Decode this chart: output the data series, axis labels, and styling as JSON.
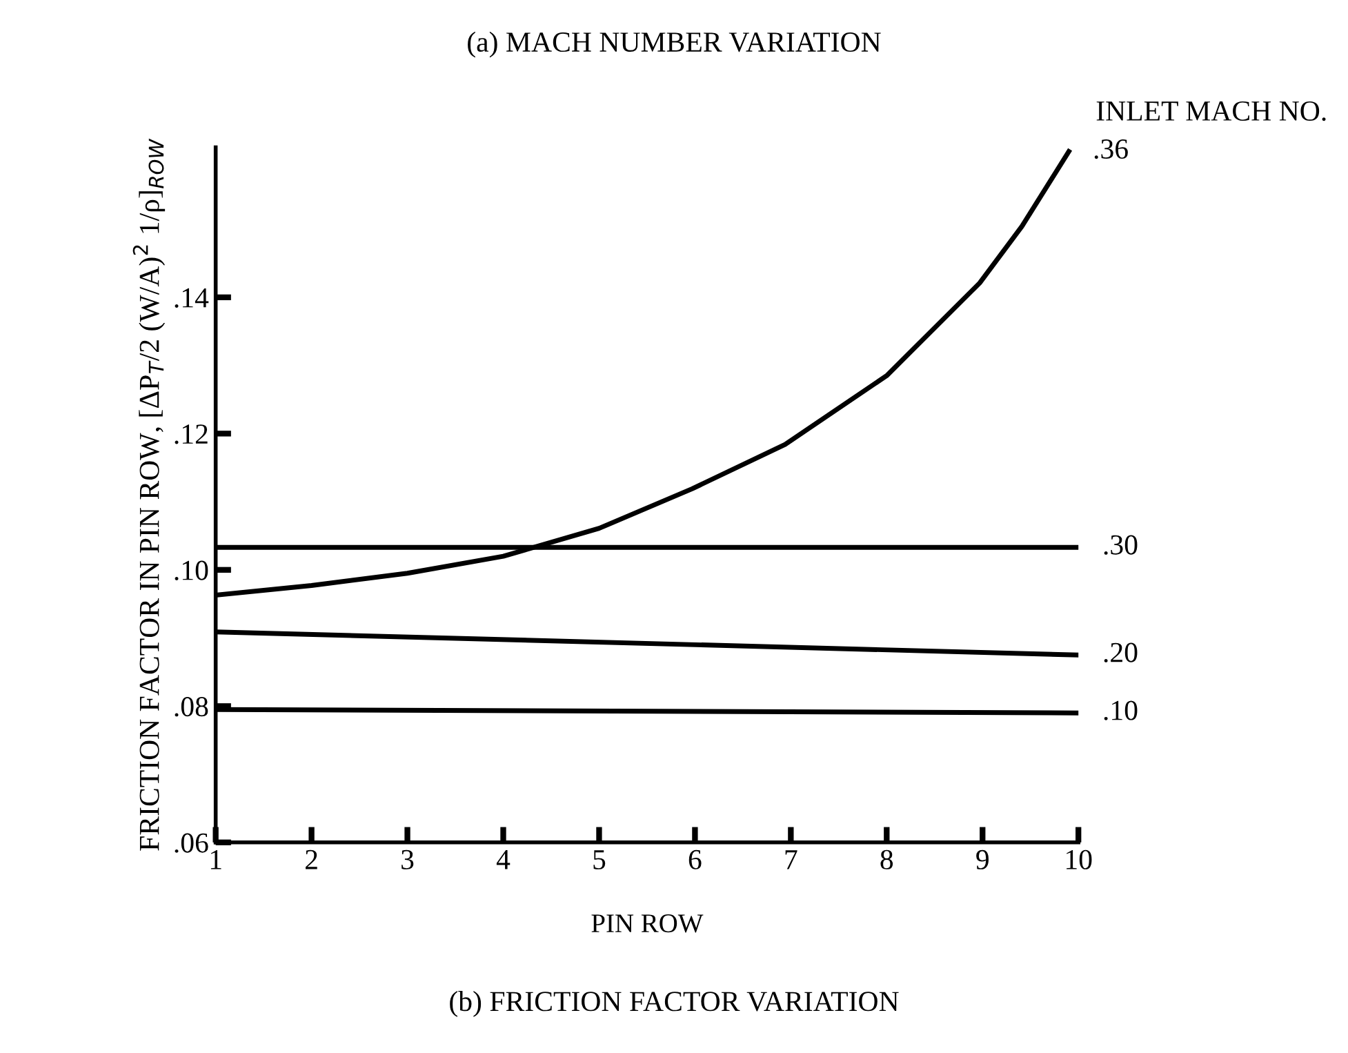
{
  "chart_data": {
    "type": "line",
    "title": "(b) FRICTION FACTOR VARIATION",
    "xlabel": "PIN ROW",
    "ylabel": "FRICTION FACTOR IN PIN ROW, [ΔP$_{T}$/2 (W/A)$^{2}$ 1/ρ]$_{ROW}$",
    "legend_title": "INLET MACH NO.",
    "annotations": [
      "(a) MACH NUMBER VARIATION"
    ],
    "xlim": [
      1,
      10
    ],
    "ylim": [
      0.06,
      0.162
    ],
    "xticks": [
      1,
      2,
      3,
      4,
      5,
      6,
      7,
      8,
      9,
      10
    ],
    "yticks": [
      {
        "value": 0.06,
        "label": ".06"
      },
      {
        "value": 0.08,
        "label": ".08"
      },
      {
        "value": 0.1,
        "label": ".10"
      },
      {
        "value": 0.12,
        "label": ".12"
      },
      {
        "value": 0.14,
        "label": ".14"
      }
    ],
    "grid": false,
    "legend": false,
    "marker": "none",
    "line_style": "solid",
    "series": [
      {
        "name": ".36",
        "color": "#000000",
        "x": [
          1,
          2,
          3,
          4,
          5,
          5.97,
          6.94,
          8,
          8.97,
          9.41,
          9.9
        ],
        "values": [
          0.0963,
          0.0977,
          0.0995,
          0.102,
          0.1061,
          0.1119,
          0.1184,
          0.1285,
          0.1421,
          0.1504,
          0.1614
        ]
      },
      {
        "name": ".30",
        "color": "#000000",
        "x": [
          1,
          10
        ],
        "values": [
          0.1033,
          0.1033
        ]
      },
      {
        "name": ".20",
        "color": "#000000",
        "x": [
          1,
          10
        ],
        "values": [
          0.0909,
          0.0875
        ]
      },
      {
        "name": ".10",
        "color": "#000000",
        "x": [
          1,
          10
        ],
        "values": [
          0.0795,
          0.079
        ]
      }
    ]
  }
}
